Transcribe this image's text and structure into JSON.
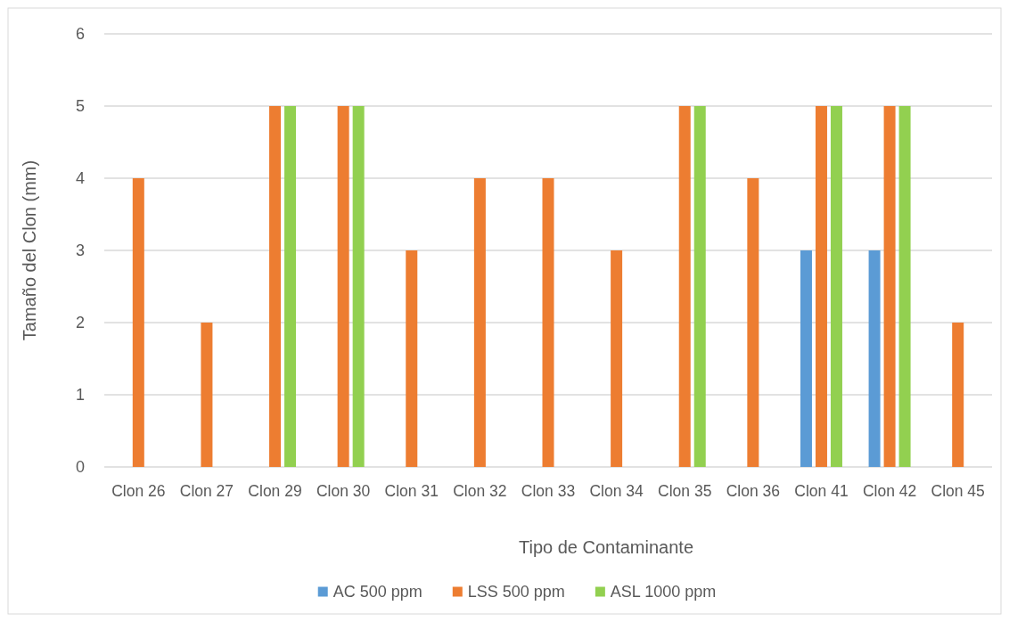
{
  "chart_data": {
    "type": "bar",
    "xlabel": "Tipo de Contaminante",
    "ylabel": "Tamaño del Clon (mm)",
    "categories": [
      "Clon 26",
      "Clon 27",
      "Clon 29",
      "Clon 30",
      "Clon 31",
      "Clon 32",
      "Clon 33",
      "Clon 34",
      "Clon 35",
      "Clon 36",
      "Clon 41",
      "Clon 42",
      "Clon 45"
    ],
    "series": [
      {
        "name": "AC 500 ppm",
        "color": "#5b9bd5",
        "values": [
          null,
          null,
          null,
          null,
          null,
          null,
          null,
          null,
          null,
          null,
          3,
          3,
          null
        ]
      },
      {
        "name": "LSS 500 ppm",
        "color": "#ed7d31",
        "values": [
          4,
          2,
          5,
          5,
          3,
          4,
          4,
          3,
          5,
          4,
          5,
          5,
          2
        ]
      },
      {
        "name": "ASL 1000 ppm",
        "color": "#92d050",
        "values": [
          null,
          null,
          5,
          5,
          null,
          null,
          null,
          null,
          5,
          null,
          5,
          5,
          null
        ]
      }
    ],
    "ylim": [
      0,
      6
    ],
    "yticks": [
      0,
      1,
      2,
      3,
      4,
      5,
      6
    ],
    "grid": "y",
    "legend": "bottom"
  }
}
